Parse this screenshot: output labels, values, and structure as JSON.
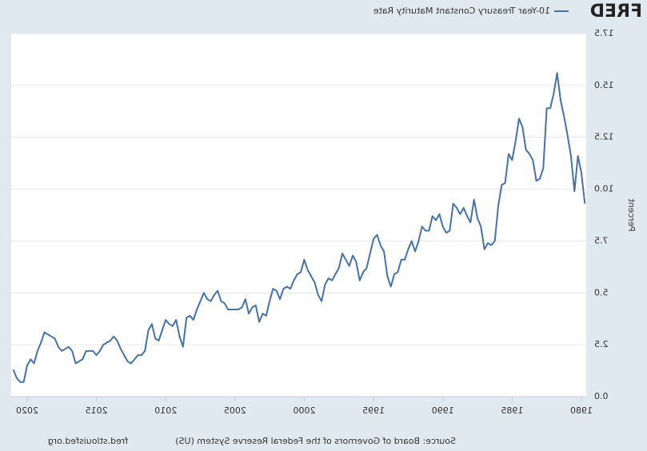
{
  "logo": "FRED",
  "chart_data": {
    "type": "line",
    "y_label": "Percent",
    "source": "Source: Board of Governors of the Federal Reserve System (US)",
    "site": "fred.stlouisfed.org",
    "grid": true,
    "xlim": [
      1979.65,
      2021.15
    ],
    "xticks": [
      1980,
      1985,
      1990,
      1995,
      2000,
      2005,
      2010,
      2015,
      2020
    ],
    "ylim": [
      0,
      17.5
    ],
    "yticks": [
      {
        "value": 0,
        "label": "0.0"
      },
      2.5,
      {
        "value": 5,
        "label": "5.0"
      },
      7.5,
      {
        "value": 10,
        "label": "10.0"
      },
      12.5,
      {
        "value": 15,
        "label": "15.0"
      },
      17.5
    ],
    "x": [
      1979.75,
      1980,
      1980.25,
      1980.5,
      1980.75,
      1981,
      1981.25,
      1981.5,
      1981.75,
      1982,
      1982.25,
      1982.5,
      1982.75,
      1983,
      1983.25,
      1983.5,
      1983.75,
      1984,
      1984.25,
      1984.5,
      1984.75,
      1985,
      1985.25,
      1985.5,
      1985.75,
      1986,
      1986.25,
      1986.5,
      1986.75,
      1987,
      1987.25,
      1987.5,
      1987.75,
      1988,
      1988.25,
      1988.5,
      1988.75,
      1989,
      1989.25,
      1989.5,
      1989.75,
      1990,
      1990.25,
      1990.5,
      1990.75,
      1991,
      1991.25,
      1991.5,
      1991.75,
      1992,
      1992.25,
      1992.5,
      1992.75,
      1993,
      1993.25,
      1993.5,
      1993.75,
      1994,
      1994.25,
      1994.5,
      1994.75,
      1995,
      1995.25,
      1995.5,
      1995.75,
      1996,
      1996.25,
      1996.5,
      1996.75,
      1997,
      1997.25,
      1997.5,
      1997.75,
      1998,
      1998.25,
      1998.5,
      1998.75,
      1999,
      1999.25,
      1999.5,
      1999.75,
      2000,
      2000.25,
      2000.5,
      2000.75,
      2001,
      2001.25,
      2001.5,
      2001.75,
      2002,
      2002.25,
      2002.5,
      2002.75,
      2003,
      2003.25,
      2003.5,
      2003.75,
      2004,
      2004.25,
      2004.5,
      2004.75,
      2005,
      2005.25,
      2005.5,
      2005.75,
      2006,
      2006.25,
      2006.5,
      2006.75,
      2007,
      2007.25,
      2007.5,
      2007.75,
      2008,
      2008.25,
      2008.5,
      2008.75,
      2009,
      2009.25,
      2009.5,
      2009.75,
      2010,
      2010.25,
      2010.5,
      2010.75,
      2011,
      2011.25,
      2011.5,
      2011.75,
      2012,
      2012.25,
      2012.5,
      2012.75,
      2013,
      2013.25,
      2013.5,
      2013.75,
      2014,
      2014.25,
      2014.5,
      2014.75,
      2015,
      2015.25,
      2015.5,
      2015.75,
      2016,
      2016.25,
      2016.5,
      2016.75,
      2017,
      2017.25,
      2017.5,
      2017.75,
      2018,
      2018.25,
      2018.5,
      2018.75,
      2019,
      2019.25,
      2019.5,
      2019.75,
      2020,
      2020.25,
      2020.5,
      2020.75,
      2021
    ],
    "series": [
      {
        "name": "10-Year Treasury Constant Maturity Rate",
        "color": "#4572a7",
        "values": [
          9.3,
          10.8,
          11.6,
          9.9,
          11.6,
          12.6,
          13.5,
          14.3,
          15.6,
          14.6,
          13.9,
          13.9,
          11.0,
          10.5,
          10.4,
          11.4,
          11.7,
          11.9,
          13.0,
          13.4,
          12.3,
          11.4,
          11.7,
          10.3,
          10.2,
          9.2,
          7.5,
          7.3,
          7.4,
          7.1,
          8.2,
          8.6,
          9.5,
          8.4,
          8.7,
          9.1,
          8.8,
          9.1,
          9.3,
          8.0,
          7.9,
          8.2,
          8.8,
          8.5,
          8.7,
          8.0,
          8.0,
          8.2,
          7.5,
          7.0,
          7.5,
          7.1,
          6.6,
          6.6,
          6.0,
          5.9,
          5.3,
          5.8,
          7.0,
          7.3,
          7.8,
          7.6,
          6.9,
          6.2,
          6.0,
          5.6,
          6.5,
          6.8,
          6.3,
          6.6,
          6.9,
          6.2,
          5.9,
          5.6,
          5.7,
          5.4,
          4.6,
          4.9,
          5.5,
          5.8,
          6.1,
          6.6,
          6.0,
          5.9,
          5.6,
          5.2,
          5.3,
          5.2,
          4.7,
          5.1,
          5.2,
          4.6,
          3.9,
          4.0,
          3.6,
          4.4,
          4.3,
          4.0,
          4.7,
          4.3,
          4.2,
          4.2,
          4.2,
          4.2,
          4.5,
          4.6,
          5.1,
          4.9,
          4.6,
          4.7,
          5.0,
          4.6,
          4.2,
          3.7,
          3.9,
          3.8,
          2.4,
          2.9,
          3.7,
          3.4,
          3.5,
          3.7,
          3.2,
          2.7,
          2.8,
          3.5,
          3.2,
          2.2,
          2.0,
          2.0,
          1.8,
          1.6,
          1.7,
          2.0,
          2.3,
          2.7,
          2.9,
          2.7,
          2.6,
          2.5,
          2.2,
          2.0,
          2.2,
          2.2,
          2.2,
          1.8,
          1.7,
          1.6,
          2.2,
          2.4,
          2.3,
          2.2,
          2.4,
          2.8,
          2.9,
          3.0,
          3.1,
          2.6,
          2.2,
          1.6,
          1.8,
          1.5,
          0.7,
          0.7,
          0.9,
          1.3
        ]
      }
    ]
  }
}
